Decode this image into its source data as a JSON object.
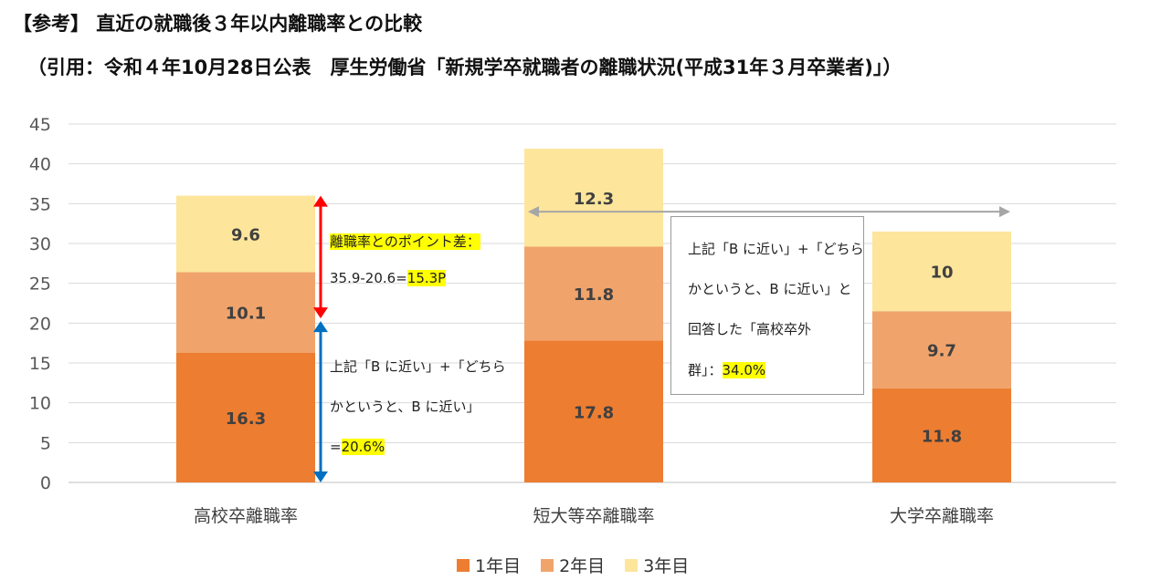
{
  "header": {
    "title": "【参考】 直近の就職後３年以内離職率との比較",
    "subtitle": "（引用：令和４年10月28日公表　厚生労働省「新規学卒就職者の離職状況(平成31年３月卒業者)」）"
  },
  "colors": {
    "year1": "#ed7d31",
    "year2": "#f0a46c",
    "year3": "#fde59b",
    "grid": "#d9d9d9",
    "red_arrow": "#ff0000",
    "blue_arrow": "#0070c0",
    "gray_arrow": "#a6a6a6"
  },
  "chart_data": {
    "type": "bar",
    "stacked": true,
    "categories": [
      "高校卒離職率",
      "短大等卒離職率",
      "大学卒離職率"
    ],
    "series": [
      {
        "name": "1年目",
        "values": [
          16.3,
          17.8,
          11.8
        ]
      },
      {
        "name": "2年目",
        "values": [
          10.1,
          11.8,
          9.7
        ]
      },
      {
        "name": "3年目",
        "values": [
          9.6,
          12.3,
          10
        ]
      }
    ],
    "yticks": [
      "0",
      "5",
      "10",
      "15",
      "20",
      "25",
      "30",
      "35",
      "40",
      "45"
    ],
    "ylim": [
      0,
      45
    ],
    "grid": true,
    "legend_position": "bottom"
  },
  "annotations": {
    "diff_label": "離職率とのポイント差：",
    "diff_formula": "35.9-20.6=",
    "diff_value": "15.3P",
    "near_b_line1": "上記「B に近い」+「どちら",
    "near_b_line2": "かというと、B に近い」",
    "near_b_line3_prefix": "=",
    "near_b_value": "20.6%",
    "box_line1": "上記「B に近い」+「どちら",
    "box_line2": "かというと、B に近い」と",
    "box_line3": "回答した「高校卒外",
    "box_line4_prefix": "群」：",
    "box_value": "34.0%"
  }
}
